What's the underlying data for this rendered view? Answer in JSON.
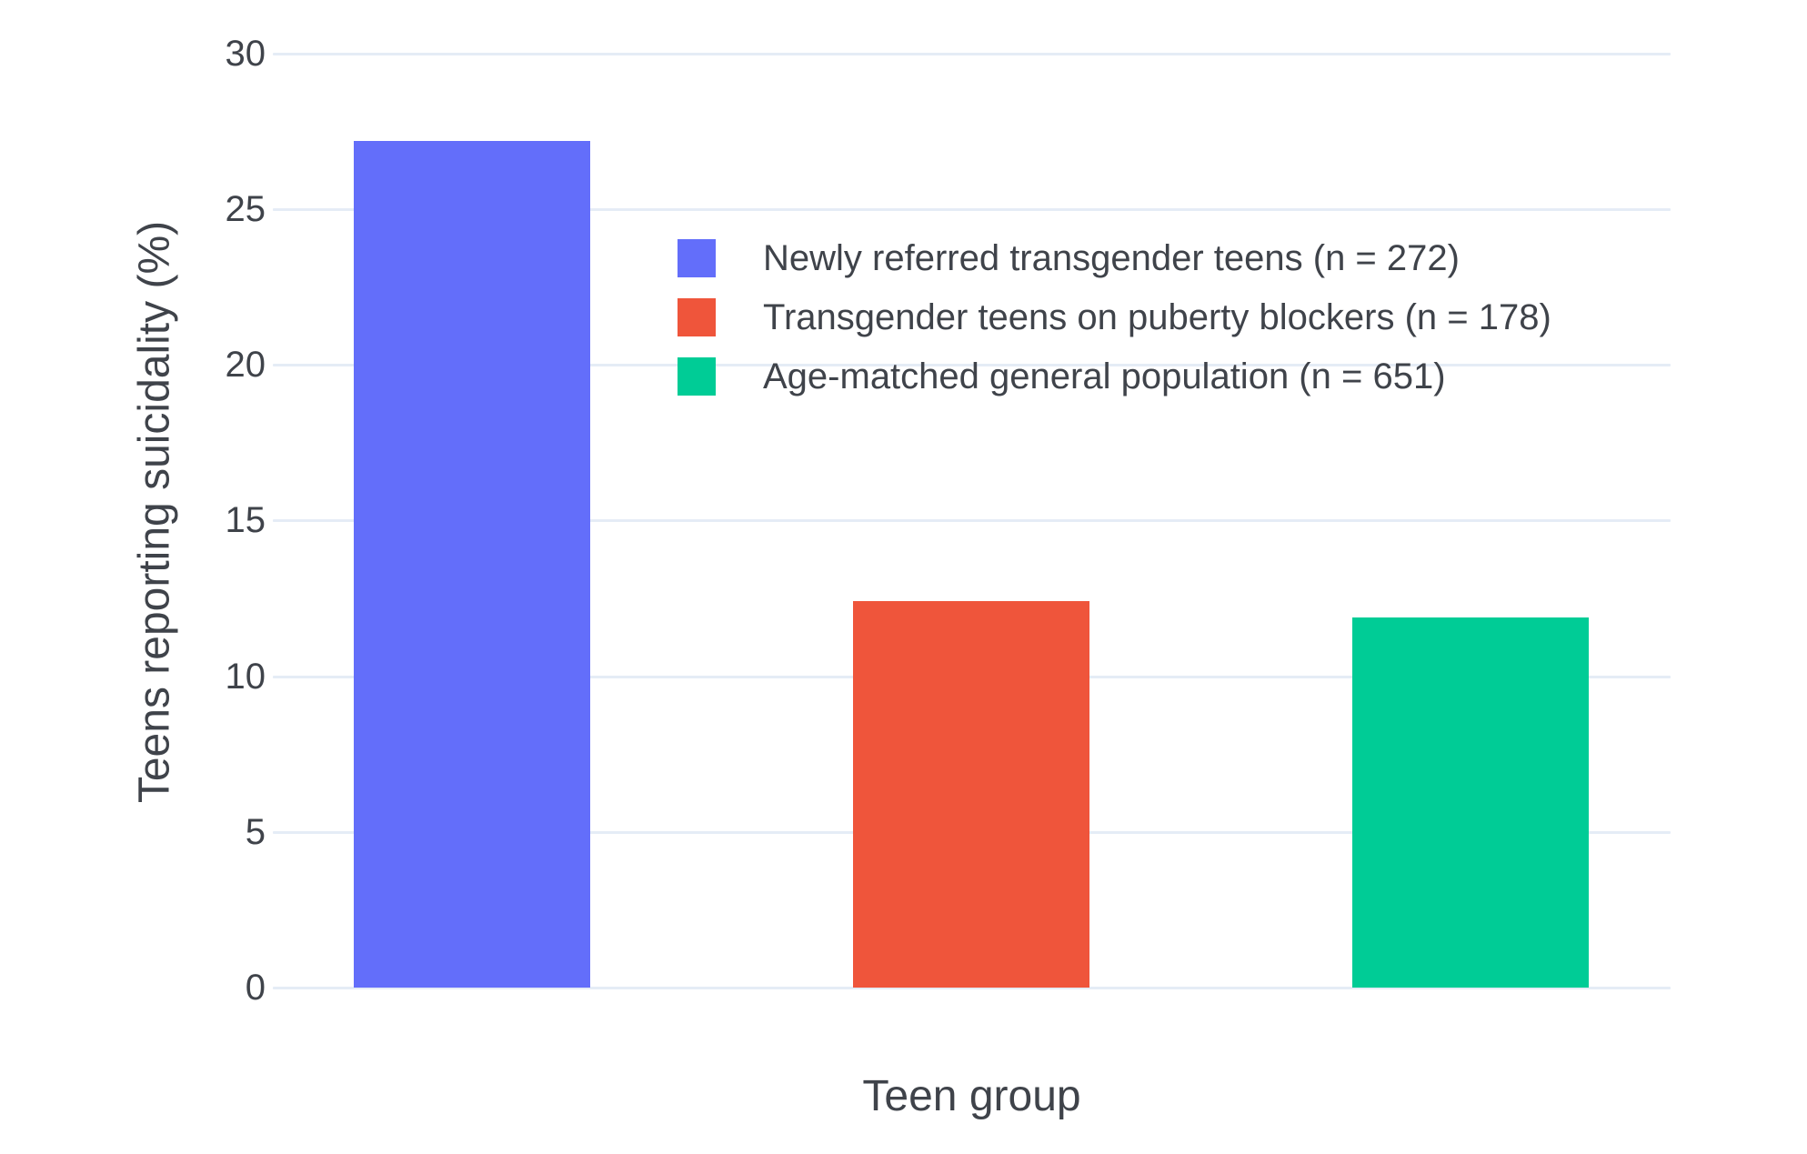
{
  "chart_data": {
    "type": "bar",
    "title": "",
    "xlabel": "Teen group",
    "ylabel": "Teens reporting suicidality (%)",
    "categories": [
      "Newly referred transgender teens (n = 272)",
      "Transgender teens on puberty blockers (n = 178)",
      "Age-matched general population (n = 651)"
    ],
    "values": [
      27.2,
      12.4,
      11.9
    ],
    "bar_colors": [
      "#636EFA",
      "#EF553B",
      "#00CC96"
    ],
    "yticks": [
      0,
      5,
      10,
      15,
      20,
      25,
      30
    ],
    "ytick_labels": [
      "0",
      "5",
      "10",
      "15",
      "20",
      "25",
      "30"
    ],
    "ylim": [
      0,
      30.6
    ],
    "grid": true,
    "legend_position": "inside top-center",
    "legend": [
      {
        "label": "Newly referred transgender teens (n = 272)",
        "color": "#636EFA"
      },
      {
        "label": "Transgender teens on puberty blockers (n = 178)",
        "color": "#EF553B"
      },
      {
        "label": "Age-matched general population (n = 651)",
        "color": "#00CC96"
      }
    ]
  },
  "colors": {
    "background": "#FFFFFF",
    "gridline": "#E5ECF6",
    "text": "#3F434A"
  }
}
